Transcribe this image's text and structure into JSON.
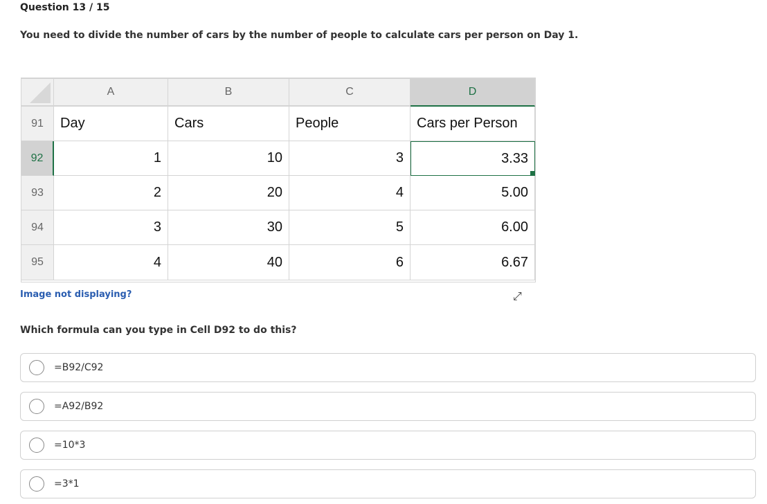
{
  "question_number": "Question 13 / 15",
  "prompt": "You need to divide the number of cars by the number of people to calculate cars per person on Day 1.",
  "sheet": {
    "columns": [
      "A",
      "B",
      "C",
      "D"
    ],
    "selected_column": "D",
    "selected_row": "92",
    "rows": [
      {
        "num": "91",
        "cells": [
          "Day",
          "Cars",
          "People",
          "Cars per Person"
        ]
      },
      {
        "num": "92",
        "cells": [
          "1",
          "10",
          "3",
          "3.33"
        ]
      },
      {
        "num": "93",
        "cells": [
          "2",
          "20",
          "4",
          "5.00"
        ]
      },
      {
        "num": "94",
        "cells": [
          "3",
          "30",
          "5",
          "6.00"
        ]
      },
      {
        "num": "95",
        "cells": [
          "4",
          "40",
          "6",
          "6.67"
        ]
      }
    ],
    "accent": "#1e7145"
  },
  "image_not_displaying": "Image not displaying?",
  "expand_icon": "↗↙",
  "question": "Which formula can you type in Cell D92 to do this?",
  "options": [
    "=B92/C92",
    "=A92/B92",
    "=10*3",
    "=3*1"
  ]
}
